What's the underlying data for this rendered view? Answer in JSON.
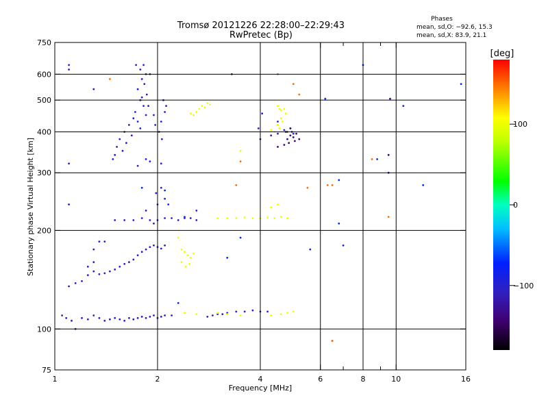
{
  "chart_data": {
    "type": "scatter",
    "title": "Tromsø 20121226 22:28:00–22:29:43",
    "subtitle": "RwPretec (Bp)",
    "xlabel": "Frequency [MHz]",
    "ylabel": "Stationary phase Virtual Height [km]",
    "x_scale": "log",
    "y_scale": "log",
    "xlim": [
      1,
      16
    ],
    "ylim": [
      75,
      750
    ],
    "x_ticks": [
      1,
      2,
      4,
      6,
      8,
      10,
      16
    ],
    "x_tick_labels": [
      "1",
      "2",
      "4",
      "6",
      "8",
      "10",
      "16"
    ],
    "x_gridlines": [
      2,
      4,
      6,
      8,
      10
    ],
    "x_minor_ticks": [
      7,
      9
    ],
    "y_ticks": [
      75,
      100,
      200,
      300,
      400,
      500,
      600,
      750
    ],
    "y_tick_labels": [
      "75",
      "100",
      "200",
      "300",
      "400",
      "500",
      "600",
      "750"
    ],
    "y_gridlines": [
      100,
      200,
      300,
      400,
      500,
      600
    ],
    "grid": true,
    "phase_info": {
      "title": "Phases",
      "line_o": "mean, sd,O: −92.6, 15.3",
      "line_x": "mean, sd,X:  83.9, 21.1"
    },
    "colorbar": {
      "label": "[deg]",
      "range": [
        -180,
        180
      ],
      "ticks": [
        100,
        0,
        -100
      ],
      "tick_labels": [
        "100",
        "0",
        "−100"
      ]
    },
    "series": [
      {
        "points": [
          [
            1.82,
            640
          ],
          [
            1.78,
            620
          ],
          [
            1.85,
            600
          ],
          [
            1.8,
            580
          ],
          [
            1.83,
            560
          ],
          [
            1.75,
            540
          ],
          [
            1.86,
            520
          ],
          [
            1.78,
            500
          ],
          [
            1.82,
            480
          ],
          [
            1.72,
            460
          ],
          [
            1.85,
            450
          ],
          [
            1.7,
            440
          ],
          [
            1.75,
            430
          ],
          [
            1.65,
            420
          ],
          [
            1.78,
            410
          ],
          [
            1.6,
            400
          ],
          [
            1.68,
            390
          ],
          [
            1.55,
            380
          ],
          [
            1.62,
            370
          ],
          [
            1.52,
            360
          ],
          [
            1.58,
            350
          ],
          [
            1.5,
            340
          ],
          [
            1.48,
            330
          ],
          [
            1.88,
            480
          ],
          [
            1.9,
            600
          ],
          [
            1.8,
            510
          ],
          [
            1.95,
            450
          ],
          [
            1.97,
            420
          ],
          [
            2.02,
            400
          ],
          [
            2.05,
            430
          ],
          [
            2.1,
            460
          ],
          [
            2.08,
            500
          ],
          [
            2.12,
            480
          ],
          [
            2.06,
            380
          ],
          [
            1.1,
            640
          ],
          [
            1.1,
            620
          ],
          [
            1.73,
            640
          ],
          [
            1.3,
            540
          ],
          [
            1.1,
            320
          ],
          [
            1.9,
            325
          ],
          [
            2.05,
            320
          ],
          [
            1.75,
            315
          ],
          [
            1.85,
            330
          ]
        ],
        "phase": -95
      },
      {
        "points": [
          [
            1.08,
            108
          ],
          [
            1.12,
            106
          ],
          [
            1.2,
            108
          ],
          [
            1.25,
            107
          ],
          [
            1.3,
            110
          ],
          [
            1.35,
            108
          ],
          [
            1.4,
            106
          ],
          [
            1.45,
            107
          ],
          [
            1.5,
            108
          ],
          [
            1.55,
            107
          ],
          [
            1.6,
            106
          ],
          [
            1.65,
            108
          ],
          [
            1.7,
            107
          ],
          [
            1.75,
            108
          ],
          [
            1.8,
            109
          ],
          [
            1.85,
            108
          ],
          [
            1.9,
            109
          ],
          [
            1.95,
            110
          ],
          [
            2.0,
            108
          ],
          [
            2.05,
            109
          ],
          [
            2.1,
            110
          ],
          [
            2.2,
            110
          ],
          [
            2.8,
            109
          ],
          [
            2.9,
            110
          ],
          [
            3.0,
            111
          ],
          [
            3.1,
            111
          ],
          [
            3.2,
            112
          ],
          [
            3.4,
            113
          ],
          [
            3.6,
            113
          ],
          [
            3.8,
            114
          ],
          [
            4.0,
            113
          ],
          [
            4.2,
            113
          ],
          [
            1.1,
            135
          ],
          [
            1.15,
            138
          ],
          [
            1.2,
            140
          ],
          [
            1.25,
            146
          ],
          [
            1.3,
            150
          ],
          [
            1.35,
            147
          ],
          [
            1.4,
            148
          ],
          [
            1.45,
            150
          ],
          [
            1.5,
            152
          ],
          [
            1.55,
            155
          ],
          [
            1.6,
            158
          ],
          [
            1.65,
            160
          ],
          [
            1.7,
            163
          ],
          [
            1.75,
            168
          ],
          [
            1.8,
            172
          ],
          [
            1.85,
            175
          ],
          [
            1.9,
            178
          ],
          [
            1.95,
            180
          ],
          [
            2.0,
            178
          ],
          [
            2.05,
            176
          ],
          [
            2.1,
            180
          ],
          [
            1.25,
            155
          ],
          [
            1.3,
            160
          ],
          [
            1.3,
            175
          ],
          [
            1.35,
            185
          ],
          [
            1.4,
            185
          ],
          [
            1.5,
            215
          ],
          [
            1.6,
            215
          ],
          [
            1.7,
            215
          ],
          [
            1.8,
            218
          ],
          [
            1.9,
            215
          ],
          [
            2.0,
            215
          ],
          [
            2.1,
            218
          ],
          [
            2.2,
            218
          ],
          [
            2.3,
            215
          ],
          [
            2.4,
            218
          ],
          [
            2.5,
            218
          ],
          [
            2.6,
            215
          ],
          [
            1.85,
            230
          ],
          [
            1.95,
            210
          ],
          [
            2.0,
            240
          ],
          [
            2.05,
            270
          ],
          [
            1.98,
            260
          ],
          [
            2.1,
            250
          ],
          [
            2.4,
            220
          ],
          [
            2.6,
            230
          ],
          [
            4.0,
            380
          ],
          [
            4.3,
            390
          ],
          [
            4.5,
            395
          ],
          [
            4.7,
            405
          ],
          [
            4.8,
            400
          ],
          [
            4.9,
            410
          ],
          [
            5.0,
            395
          ],
          [
            4.05,
            455
          ],
          [
            3.95,
            410
          ],
          [
            4.5,
            430
          ],
          [
            3.3,
            600
          ],
          [
            1.05,
            110
          ],
          [
            1.15,
            100
          ]
        ],
        "phase": -100
      },
      {
        "points": [
          [
            2.5,
            455
          ],
          [
            2.55,
            450
          ],
          [
            2.6,
            460
          ],
          [
            2.65,
            470
          ],
          [
            2.7,
            480
          ],
          [
            2.75,
            475
          ],
          [
            2.8,
            490
          ],
          [
            2.85,
            485
          ],
          [
            4.5,
            480
          ],
          [
            4.55,
            470
          ],
          [
            4.6,
            465
          ],
          [
            4.7,
            470
          ],
          [
            4.75,
            455
          ],
          [
            4.6,
            440
          ],
          [
            4.65,
            430
          ],
          [
            4.5,
            420
          ],
          [
            4.55,
            410
          ],
          [
            4.3,
            405
          ],
          [
            2.35,
            175
          ],
          [
            2.4,
            172
          ],
          [
            2.45,
            168
          ],
          [
            2.5,
            165
          ],
          [
            2.55,
            170
          ],
          [
            2.35,
            160
          ],
          [
            2.42,
            155
          ],
          [
            2.48,
            158
          ],
          [
            2.3,
            190
          ],
          [
            3.0,
            218
          ],
          [
            3.2,
            218
          ],
          [
            3.4,
            218
          ],
          [
            3.6,
            219
          ],
          [
            3.8,
            218
          ],
          [
            4.0,
            218
          ],
          [
            4.2,
            219
          ],
          [
            4.4,
            218
          ],
          [
            4.6,
            220
          ],
          [
            4.8,
            218
          ],
          [
            4.3,
            235
          ],
          [
            4.5,
            240
          ],
          [
            2.4,
            112
          ],
          [
            2.6,
            111
          ],
          [
            3.0,
            112
          ],
          [
            3.2,
            111
          ],
          [
            3.5,
            110
          ],
          [
            4.3,
            110
          ],
          [
            4.6,
            111
          ],
          [
            4.8,
            112
          ],
          [
            5.0,
            113
          ],
          [
            3.5,
            350
          ],
          [
            4.4,
            400
          ]
        ],
        "phase": 100
      },
      {
        "points": [
          [
            4.8,
            380
          ],
          [
            4.85,
            370
          ],
          [
            4.9,
            390
          ],
          [
            4.95,
            400
          ],
          [
            5.0,
            385
          ],
          [
            5.05,
            375
          ],
          [
            5.1,
            395
          ],
          [
            4.7,
            365
          ],
          [
            4.75,
            400
          ],
          [
            4.9,
            410
          ],
          [
            5.2,
            380
          ],
          [
            4.5,
            360
          ],
          [
            9.6,
            505
          ],
          [
            6.5,
            92
          ],
          [
            9.5,
            340
          ]
        ],
        "phase": -140
      },
      {
        "points": [
          [
            1.45,
            580
          ],
          [
            3.4,
            275
          ],
          [
            3.5,
            325
          ],
          [
            4.5,
            600
          ],
          [
            5.0,
            560
          ],
          [
            5.2,
            520
          ],
          [
            6.5,
            275
          ],
          [
            6.5,
            92
          ],
          [
            8.5,
            330
          ],
          [
            6.3,
            275
          ],
          [
            5.5,
            270
          ],
          [
            9.5,
            220
          ]
        ],
        "phase": 150
      },
      {
        "points": [
          [
            1.1,
            240
          ],
          [
            2.1,
            265
          ],
          [
            2.15,
            240
          ],
          [
            3.5,
            190
          ],
          [
            3.2,
            165
          ],
          [
            5.6,
            175
          ],
          [
            6.2,
            505
          ],
          [
            6.8,
            285
          ],
          [
            7.0,
            180
          ],
          [
            8.8,
            330
          ],
          [
            9.5,
            300
          ],
          [
            10.5,
            480
          ],
          [
            15.5,
            560
          ],
          [
            12.0,
            275
          ],
          [
            8.0,
            640
          ],
          [
            2.3,
            120
          ],
          [
            6.8,
            210
          ],
          [
            1.8,
            270
          ]
        ],
        "phase": -70
      }
    ]
  }
}
